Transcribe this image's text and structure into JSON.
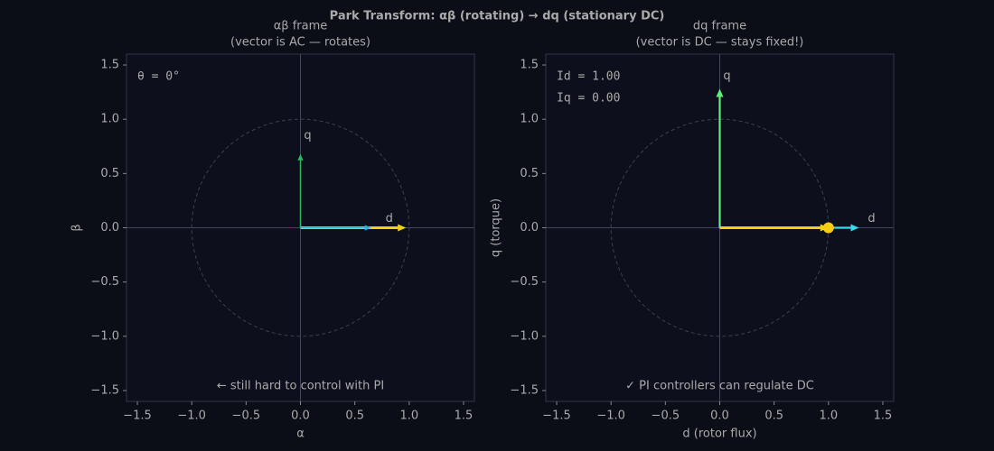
{
  "title": "Park Transform: αβ (rotating) → dq (stationary DC)",
  "chart_data": [
    {
      "type": "vector",
      "title": "αβ frame",
      "subtitle": "(vector is AC — rotates)",
      "xlabel": "α",
      "ylabel": "β",
      "xlim": [
        -1.6,
        1.6
      ],
      "ylim": [
        -1.6,
        1.6
      ],
      "xticks": [
        {
          "value": -1.5,
          "label": "−1.5"
        },
        {
          "value": -1,
          "label": "−1.0"
        },
        {
          "value": -0.5,
          "label": "−0.5"
        },
        {
          "value": 0,
          "label": "0.0"
        },
        0.5,
        {
          "value": 1,
          "label": "1.0"
        },
        1.5
      ],
      "yticks": [
        {
          "value": -1.5,
          "label": "−1.5"
        },
        {
          "value": -1,
          "label": "−1.0"
        },
        {
          "value": -0.5,
          "label": "−0.5"
        },
        {
          "value": 0,
          "label": "0.0"
        },
        0.5,
        {
          "value": 1,
          "label": "1.0"
        },
        1.5
      ],
      "circle_radius": 1,
      "vectors": [
        {
          "color": "#facc15",
          "x": 0.97,
          "y": 0
        },
        {
          "name": "d",
          "color": "#22b8c8",
          "x": 0.65,
          "y": 0
        },
        {
          "name": "q",
          "color": "#2fb45f",
          "x": 0,
          "y": 0.68
        }
      ],
      "annotations": [
        {
          "text": "θ = 0°",
          "color": "#aaaaaa"
        }
      ],
      "footnote": {
        "text": "← still hard to control with PI",
        "color": "#ef5350"
      }
    },
    {
      "type": "vector",
      "title": "dq frame",
      "subtitle": "(vector is DC — stays fixed!)",
      "xlabel": "d (rotor flux)",
      "ylabel": "q (torque)",
      "xlim": [
        -1.6,
        1.6
      ],
      "ylim": [
        -1.6,
        1.6
      ],
      "xticks": [
        {
          "value": -1.5,
          "label": "−1.5"
        },
        {
          "value": -1,
          "label": "−1.0"
        },
        {
          "value": -0.5,
          "label": "−0.5"
        },
        {
          "value": 0,
          "label": "0.0"
        },
        0.5,
        {
          "value": 1,
          "label": "1.0"
        },
        1.5
      ],
      "yticks": [
        {
          "value": -1.5,
          "label": "−1.5"
        },
        {
          "value": -1,
          "label": "−1.0"
        },
        {
          "value": -0.5,
          "label": "−0.5"
        },
        {
          "value": 0,
          "label": "0.0"
        },
        0.5,
        {
          "value": 1,
          "label": "1.0"
        },
        1.5
      ],
      "circle_radius": 1,
      "vectors": [
        {
          "name": "d",
          "color": "#38d9e8",
          "x": 1.28,
          "y": 0
        },
        {
          "name": "q",
          "color": "#5af07a",
          "x": 0,
          "y": 1.28
        },
        {
          "color": "#facc15",
          "x": 1.0,
          "y": 0,
          "marker": "dot"
        }
      ],
      "annotations": [
        {
          "text": "Id = 1.00",
          "color": "#38d9e8"
        },
        {
          "text": "Iq = 0.00",
          "color": "#5af07a"
        }
      ],
      "footnote": {
        "text": "✓ PI controllers can regulate DC",
        "color": "#5af07a"
      }
    }
  ]
}
